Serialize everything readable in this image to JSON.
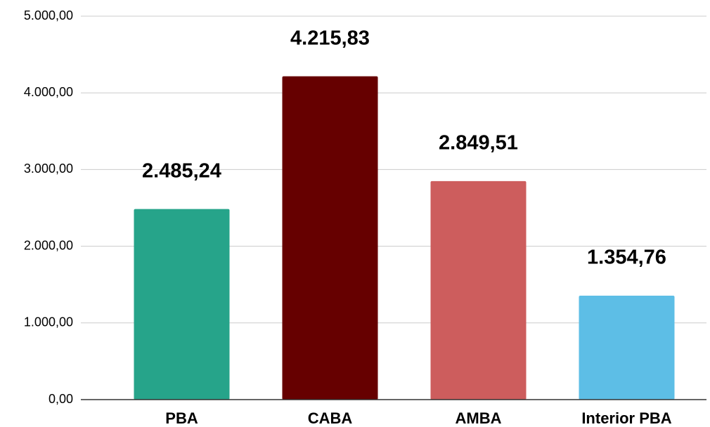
{
  "chart_data": {
    "type": "bar",
    "categories": [
      "PBA",
      "CABA",
      "AMBA",
      "Interior PBA"
    ],
    "values": [
      2485.24,
      4215.83,
      2849.51,
      1354.76
    ],
    "value_labels": [
      "2.485,24",
      "4.215,83",
      "2.849,51",
      "1.354,76"
    ],
    "colors": [
      "#26a48a",
      "#660000",
      "#cd5d5d",
      "#5dbee6"
    ],
    "ylim": [
      0,
      5000
    ],
    "yticks": [
      {
        "value": 0,
        "label": "0,00"
      },
      {
        "value": 1000,
        "label": "1.000,00"
      },
      {
        "value": 2000,
        "label": "2.000,00"
      },
      {
        "value": 3000,
        "label": "3.000,00"
      },
      {
        "value": 4000,
        "label": "4.000,00"
      },
      {
        "value": 5000,
        "label": "5.000,00"
      }
    ],
    "grid": true
  }
}
